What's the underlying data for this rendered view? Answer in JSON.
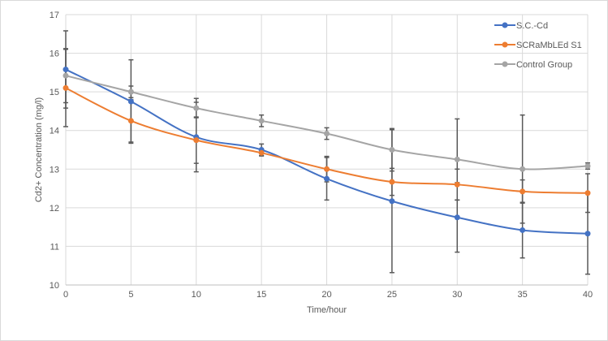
{
  "chart_data": {
    "type": "line",
    "title": "",
    "xlabel": "Time/hour",
    "ylabel": "Cd2+ Concentration (mg/l)",
    "x": [
      0,
      5,
      10,
      15,
      20,
      25,
      30,
      35,
      40
    ],
    "xlim": [
      0,
      40
    ],
    "ylim": [
      10,
      17
    ],
    "xticks": [
      0,
      5,
      10,
      15,
      20,
      25,
      30,
      35,
      40
    ],
    "yticks": [
      10,
      11,
      12,
      13,
      14,
      15,
      16,
      17
    ],
    "grid": true,
    "legend_position": "top-right",
    "smooth": true,
    "series": [
      {
        "name": "S.C.-Cd",
        "color": "#4472c4",
        "values": [
          15.58,
          14.75,
          13.83,
          13.5,
          12.75,
          12.17,
          11.75,
          11.42,
          11.33
        ],
        "error": [
          1.0,
          1.08,
          0.9,
          0.15,
          0.55,
          1.85,
          0.9,
          0.72,
          1.05
        ]
      },
      {
        "name": "SCRaMbLEd S1",
        "color": "#ed7d31",
        "values": [
          15.1,
          14.25,
          13.75,
          13.42,
          13.0,
          12.67,
          12.6,
          12.42,
          12.38
        ],
        "error": [
          1.0,
          0.55,
          0.6,
          0.08,
          0.33,
          0.35,
          0.4,
          0.3,
          0.5
        ]
      },
      {
        "name": "Control Group",
        "color": "#a5a5a5",
        "values": [
          15.42,
          15.0,
          14.58,
          14.25,
          13.92,
          13.5,
          13.25,
          13.0,
          13.08
        ],
        "error": [
          0.7,
          0.15,
          0.25,
          0.15,
          0.15,
          0.55,
          1.05,
          1.4,
          0.08
        ]
      }
    ]
  }
}
